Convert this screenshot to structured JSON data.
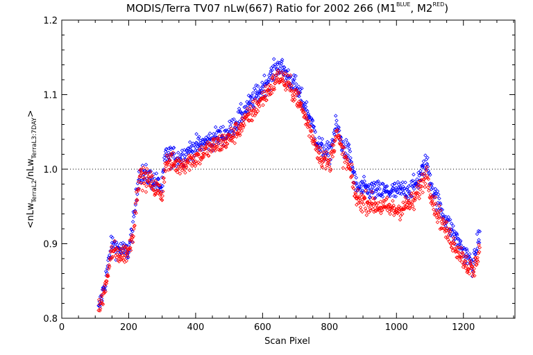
{
  "chart_data": {
    "type": "scatter",
    "title": {
      "main": "MODIS/Terra TV07 nLw(667) Ratio for 2002 266 (M1",
      "sup1": "BLUE",
      "sep": ", M2",
      "sup2": "RED",
      "end": ")"
    },
    "xlabel": "Scan Pixel",
    "ylabel": {
      "pre": "<nLw",
      "sub1": "TerraL2",
      "mid": "/nLw",
      "sub2": "TerraL3:7DAY",
      "post": ">"
    },
    "xlim": [
      0,
      1354
    ],
    "ylim": [
      0.8,
      1.2
    ],
    "x_ticks": [
      0,
      200,
      400,
      600,
      800,
      1000,
      1200
    ],
    "x_tick_labels": [
      "0",
      "200",
      "400",
      "600",
      "800",
      "1000",
      "1200"
    ],
    "y_ticks": [
      0.8,
      0.9,
      1.0,
      1.1,
      1.2
    ],
    "y_tick_labels": [
      "0.8",
      "0.9",
      "1.0",
      "1.1",
      "1.2"
    ],
    "reference_line": {
      "y": 1.0,
      "style": "dotted"
    },
    "grid": false,
    "legend": "none",
    "series": [
      {
        "color": "#0000ff",
        "marker": "diamond",
        "x_range": [
          110,
          1250
        ],
        "profile": [
          [
            110,
            0.81
          ],
          [
            130,
            0.85
          ],
          [
            150,
            0.9
          ],
          [
            180,
            0.89
          ],
          [
            200,
            0.89
          ],
          [
            215,
            0.93
          ],
          [
            230,
            0.995
          ],
          [
            260,
            0.99
          ],
          [
            300,
            0.975
          ],
          [
            310,
            1.02
          ],
          [
            350,
            1.015
          ],
          [
            400,
            1.03
          ],
          [
            450,
            1.04
          ],
          [
            500,
            1.05
          ],
          [
            550,
            1.08
          ],
          [
            600,
            1.11
          ],
          [
            650,
            1.14
          ],
          [
            700,
            1.11
          ],
          [
            740,
            1.07
          ],
          [
            770,
            1.03
          ],
          [
            800,
            1.02
          ],
          [
            820,
            1.06
          ],
          [
            840,
            1.03
          ],
          [
            860,
            1.02
          ],
          [
            880,
            0.975
          ],
          [
            950,
            0.97
          ],
          [
            1000,
            0.97
          ],
          [
            1050,
            0.975
          ],
          [
            1070,
            0.99
          ],
          [
            1090,
            1.01
          ],
          [
            1110,
            0.97
          ],
          [
            1150,
            0.93
          ],
          [
            1200,
            0.89
          ],
          [
            1230,
            0.87
          ],
          [
            1250,
            0.92
          ]
        ]
      },
      {
        "color": "#ff0000",
        "marker": "diamond",
        "x_range": [
          110,
          1250
        ],
        "profile": [
          [
            110,
            0.81
          ],
          [
            130,
            0.84
          ],
          [
            150,
            0.89
          ],
          [
            180,
            0.885
          ],
          [
            200,
            0.89
          ],
          [
            215,
            0.92
          ],
          [
            230,
            0.99
          ],
          [
            260,
            0.985
          ],
          [
            300,
            0.965
          ],
          [
            310,
            1.01
          ],
          [
            350,
            1.005
          ],
          [
            400,
            1.015
          ],
          [
            450,
            1.03
          ],
          [
            500,
            1.04
          ],
          [
            550,
            1.065
          ],
          [
            600,
            1.095
          ],
          [
            650,
            1.125
          ],
          [
            700,
            1.1
          ],
          [
            740,
            1.055
          ],
          [
            770,
            1.02
          ],
          [
            800,
            1.005
          ],
          [
            820,
            1.05
          ],
          [
            840,
            1.02
          ],
          [
            860,
            1.0
          ],
          [
            880,
            0.96
          ],
          [
            950,
            0.95
          ],
          [
            1000,
            0.945
          ],
          [
            1050,
            0.955
          ],
          [
            1070,
            0.975
          ],
          [
            1090,
            0.995
          ],
          [
            1110,
            0.955
          ],
          [
            1150,
            0.915
          ],
          [
            1200,
            0.88
          ],
          [
            1230,
            0.86
          ],
          [
            1250,
            0.9
          ]
        ]
      }
    ]
  }
}
